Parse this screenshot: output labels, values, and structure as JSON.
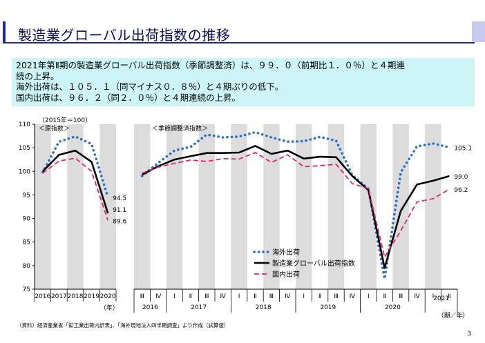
{
  "title": "製造業グローバル出荷指数の推移",
  "summary": [
    "2021年第Ⅱ期の製造業グローバル出荷指数（季節調整済）は、９９．０（前期比１．０％）と４期連",
    "続の上昇。",
    "海外出荷は、１０５．１（同マイナス０．８％）と４期ぶりの低下。",
    "国内出荷は、９６．２（同２．０％）と４期連続の上昇。"
  ],
  "footnote": "（資料）経済産業省「鉱工業出荷内訳表」、「海外現地法人四半期調査」より作成（試算値）",
  "page_number": "3",
  "colors": {
    "overseas": "#2a6fc3",
    "global": "#000000",
    "domestic": "#e0246a",
    "shade": "#dcdcdc"
  },
  "chart_data": {
    "type": "line",
    "ylim": [
      75,
      110
    ],
    "yticks": [
      75,
      80,
      85,
      90,
      95,
      100,
      105,
      110
    ],
    "base_label": "（2015年＝100）",
    "annual_label": "＜原指数＞",
    "quarterly_label": "＜季節調整済指数＞",
    "annual": {
      "categories": [
        "2016",
        "2017",
        "2018",
        "2019",
        "2020"
      ],
      "unit_label": "（年）",
      "series": [
        {
          "name": "海外出荷",
          "values": [
            99.8,
            106.3,
            107.4,
            105.8,
            94.5
          ]
        },
        {
          "name": "製造業グローバル出荷指数",
          "values": [
            100.0,
            103.5,
            104.4,
            102.0,
            91.1
          ]
        },
        {
          "name": "国内出荷",
          "values": [
            99.6,
            102.2,
            102.8,
            100.0,
            89.6
          ]
        }
      ],
      "end_labels": [
        "94.5",
        "91.1",
        "89.6"
      ]
    },
    "quarterly": {
      "quarter_labels": [
        "Ⅲ",
        "Ⅳ",
        "Ⅰ",
        "Ⅱ",
        "Ⅲ",
        "Ⅳ",
        "Ⅰ",
        "Ⅱ",
        "Ⅲ",
        "Ⅳ",
        "Ⅰ",
        "Ⅱ",
        "Ⅲ",
        "Ⅳ",
        "Ⅰ",
        "Ⅱ",
        "Ⅲ",
        "Ⅳ",
        "Ⅰ",
        "Ⅱ"
      ],
      "year_groups": [
        {
          "label": "2016",
          "span": 2
        },
        {
          "label": "2017",
          "span": 4
        },
        {
          "label": "2018",
          "span": 4
        },
        {
          "label": "2019",
          "span": 4
        },
        {
          "label": "2020",
          "span": 4
        },
        {
          "label": "2021",
          "span": 2
        }
      ],
      "unit_label": "（期／年）",
      "series": [
        {
          "name": "海外出荷",
          "values": [
            99.0,
            101.8,
            104.4,
            105.2,
            107.8,
            107.2,
            107.4,
            108.3,
            107.2,
            106.3,
            106.4,
            107.3,
            106.5,
            99.2,
            96.3,
            77.2,
            99.8,
            105.3,
            105.9,
            105.1
          ]
        },
        {
          "name": "製造業グローバル出荷指数",
          "values": [
            99.3,
            101.1,
            102.5,
            103.2,
            103.9,
            103.9,
            104.0,
            105.4,
            103.7,
            104.4,
            102.7,
            103.1,
            103.0,
            99.0,
            96.0,
            79.5,
            91.6,
            97.2,
            98.0,
            99.0
          ]
        },
        {
          "name": "国内出荷",
          "values": [
            99.6,
            100.9,
            101.7,
            102.4,
            102.1,
            102.7,
            102.6,
            104.0,
            101.9,
            103.5,
            101.0,
            101.2,
            101.5,
            97.4,
            96.3,
            81.8,
            87.4,
            93.5,
            94.2,
            96.2
          ]
        }
      ],
      "end_labels": [
        "105.1",
        "99.0",
        "96.2"
      ]
    },
    "legend": [
      "海外出荷",
      "製造業グローバル出荷指数",
      "国内出荷"
    ]
  }
}
